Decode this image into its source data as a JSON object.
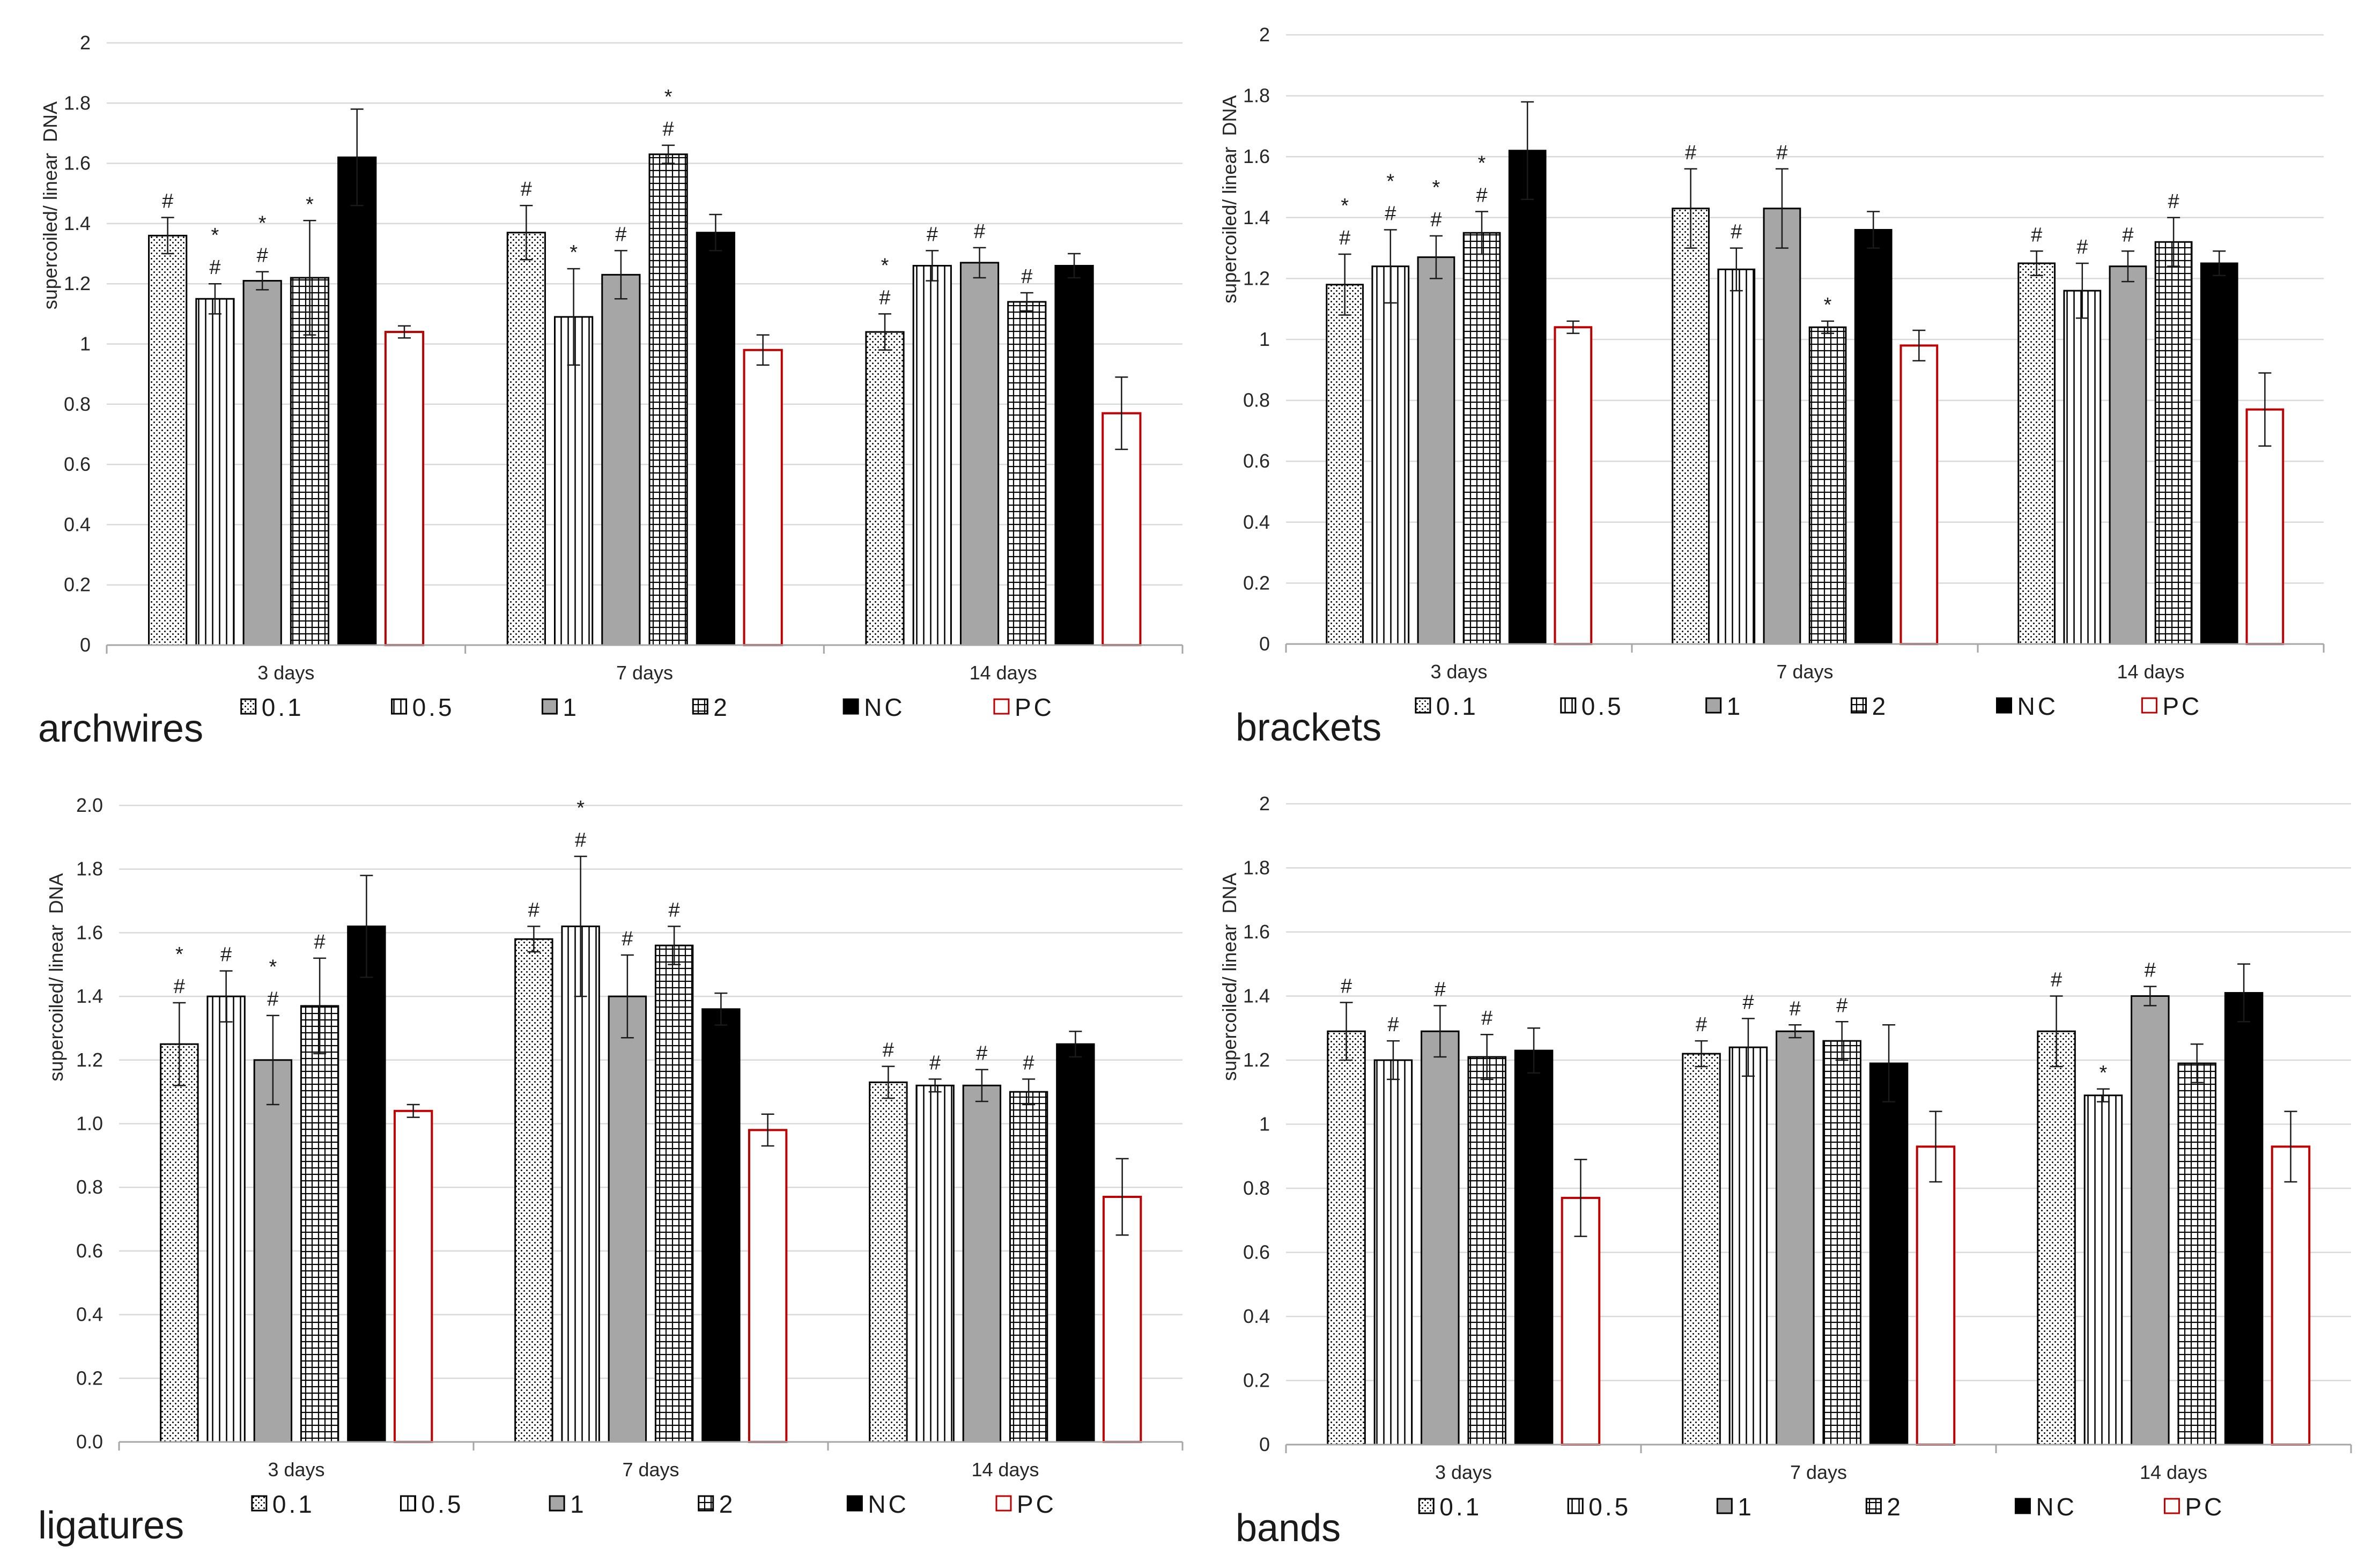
{
  "chart_data": [
    {
      "type": "bar",
      "title": "archwires",
      "xlabel": "",
      "ylabel": "supercoiled/ linear  DNA",
      "ylim": [
        0,
        2
      ],
      "ytick_labels": [
        "0",
        "0.2",
        "0.4",
        "0.6",
        "0.8",
        "1",
        "1.2",
        "1.4",
        "1.6",
        "1.8",
        "2"
      ],
      "categories": [
        "3 days",
        "7 days",
        "14 days"
      ],
      "series": [
        {
          "name": "0.1",
          "fill": "#ffffff",
          "edge": "#000000",
          "values": [
            1.36,
            1.37,
            1.04
          ],
          "errors": [
            0.06,
            0.09,
            0.06
          ],
          "annotations": [
            [
              "#"
            ],
            [
              "#"
            ],
            [
              "*",
              "#"
            ]
          ]
        },
        {
          "name": "0.5",
          "fill": "#ffffff",
          "edge": "#000000",
          "values": [
            1.15,
            1.09,
            1.26
          ],
          "errors": [
            0.05,
            0.16,
            0.05
          ],
          "annotations": [
            [
              "*",
              "#"
            ],
            [
              "*"
            ],
            [
              "#"
            ]
          ]
        },
        {
          "name": "1",
          "fill": "#a6a6a6",
          "edge": "#000000",
          "values": [
            1.21,
            1.23,
            1.27
          ],
          "errors": [
            0.03,
            0.08,
            0.05
          ],
          "annotations": [
            [
              "*",
              "#"
            ],
            [
              "#"
            ],
            [
              "#"
            ]
          ]
        },
        {
          "name": "2",
          "fill": "#ffffff",
          "edge": "#000000",
          "values": [
            1.22,
            1.63,
            1.14
          ],
          "errors": [
            0.19,
            0.03,
            0.03
          ],
          "annotations": [
            [
              "*"
            ],
            [
              "*",
              "#"
            ],
            [
              "#"
            ]
          ]
        },
        {
          "name": "NC",
          "fill": "#000000",
          "edge": "#000000",
          "values": [
            1.62,
            1.37,
            1.26
          ],
          "errors": [
            0.16,
            0.06,
            0.04
          ],
          "annotations": [
            [],
            [],
            []
          ]
        },
        {
          "name": "PC",
          "fill": "#ffffff",
          "edge": "#c00000",
          "values": [
            1.04,
            0.98,
            0.77
          ],
          "errors": [
            0.02,
            0.05,
            0.12
          ],
          "annotations": [
            [],
            [],
            []
          ]
        }
      ]
    },
    {
      "type": "bar",
      "title": "brackets",
      "xlabel": "",
      "ylabel": "supercoiled/ linear  DNA",
      "ylim": [
        0,
        2
      ],
      "ytick_labels": [
        "0",
        "0.2",
        "0.4",
        "0.6",
        "0.8",
        "1",
        "1.2",
        "1.4",
        "1.6",
        "1.8",
        "2"
      ],
      "categories": [
        "3 days",
        "7 days",
        "14 days"
      ],
      "series": [
        {
          "name": "0.1",
          "fill": "#ffffff",
          "edge": "#000000",
          "values": [
            1.18,
            1.43,
            1.25
          ],
          "errors": [
            0.1,
            0.13,
            0.04
          ],
          "annotations": [
            [
              "*",
              "#"
            ],
            [
              "#"
            ],
            [
              "#"
            ]
          ]
        },
        {
          "name": "0.5",
          "fill": "#ffffff",
          "edge": "#000000",
          "values": [
            1.24,
            1.23,
            1.16
          ],
          "errors": [
            0.12,
            0.07,
            0.09
          ],
          "annotations": [
            [
              "*",
              "#"
            ],
            [
              "#"
            ],
            [
              "#"
            ]
          ]
        },
        {
          "name": "1",
          "fill": "#a6a6a6",
          "edge": "#000000",
          "values": [
            1.27,
            1.43,
            1.24
          ],
          "errors": [
            0.07,
            0.13,
            0.05
          ],
          "annotations": [
            [
              "*",
              "#"
            ],
            [
              "#"
            ],
            [
              "#"
            ]
          ]
        },
        {
          "name": "2",
          "fill": "#ffffff",
          "edge": "#000000",
          "values": [
            1.35,
            1.04,
            1.32
          ],
          "errors": [
            0.07,
            0.02,
            0.08
          ],
          "annotations": [
            [
              "*",
              "#"
            ],
            [
              "*"
            ],
            [
              "#"
            ]
          ]
        },
        {
          "name": "NC",
          "fill": "#000000",
          "edge": "#000000",
          "values": [
            1.62,
            1.36,
            1.25
          ],
          "errors": [
            0.16,
            0.06,
            0.04
          ],
          "annotations": [
            [],
            [],
            []
          ]
        },
        {
          "name": "PC",
          "fill": "#ffffff",
          "edge": "#c00000",
          "values": [
            1.04,
            0.98,
            0.77
          ],
          "errors": [
            0.02,
            0.05,
            0.12
          ],
          "annotations": [
            [],
            [],
            []
          ]
        }
      ]
    },
    {
      "type": "bar",
      "title": "ligatures",
      "xlabel": "",
      "ylabel": "supercoiled/ linear  DNA",
      "ylim": [
        0,
        2
      ],
      "ytick_labels": [
        "0.0",
        "0.2",
        "0.4",
        "0.6",
        "0.8",
        "1.0",
        "1.2",
        "1.4",
        "1.6",
        "1.8",
        "2.0"
      ],
      "categories": [
        "3 days",
        "7 days",
        "14 days"
      ],
      "series": [
        {
          "name": "0.1",
          "fill": "#ffffff",
          "edge": "#000000",
          "values": [
            1.25,
            1.58,
            1.13
          ],
          "errors": [
            0.13,
            0.04,
            0.05
          ],
          "annotations": [
            [
              "*",
              "#"
            ],
            [
              "#"
            ],
            [
              "#"
            ]
          ]
        },
        {
          "name": "0.5",
          "fill": "#ffffff",
          "edge": "#000000",
          "values": [
            1.4,
            1.62,
            1.12
          ],
          "errors": [
            0.08,
            0.22,
            0.02
          ],
          "annotations": [
            [
              "#"
            ],
            [
              "*",
              "#"
            ],
            [
              "#"
            ]
          ]
        },
        {
          "name": "1",
          "fill": "#a6a6a6",
          "edge": "#000000",
          "values": [
            1.2,
            1.4,
            1.12
          ],
          "errors": [
            0.14,
            0.13,
            0.05
          ],
          "annotations": [
            [
              "*",
              "#"
            ],
            [
              "#"
            ],
            [
              "#"
            ]
          ]
        },
        {
          "name": "2",
          "fill": "#ffffff",
          "edge": "#000000",
          "values": [
            1.37,
            1.56,
            1.1
          ],
          "errors": [
            0.15,
            0.06,
            0.04
          ],
          "annotations": [
            [
              "#"
            ],
            [
              "#"
            ],
            [
              "#"
            ]
          ]
        },
        {
          "name": "NC",
          "fill": "#000000",
          "edge": "#000000",
          "values": [
            1.62,
            1.36,
            1.25
          ],
          "errors": [
            0.16,
            0.05,
            0.04
          ],
          "annotations": [
            [],
            [],
            []
          ]
        },
        {
          "name": "PC",
          "fill": "#ffffff",
          "edge": "#c00000",
          "values": [
            1.04,
            0.98,
            0.77
          ],
          "errors": [
            0.02,
            0.05,
            0.12
          ],
          "annotations": [
            [],
            [],
            []
          ]
        }
      ]
    },
    {
      "type": "bar",
      "title": "bands",
      "xlabel": "",
      "ylabel": "supercoiled/ linear  DNA",
      "ylim": [
        0,
        2
      ],
      "ytick_labels": [
        "0",
        "0.2",
        "0.4",
        "0.6",
        "0.8",
        "1",
        "1.2",
        "1.4",
        "1.6",
        "1.8",
        "2"
      ],
      "categories": [
        "3 days",
        "7 days",
        "14 days"
      ],
      "series": [
        {
          "name": "0.1",
          "fill": "#ffffff",
          "edge": "#000000",
          "values": [
            1.29,
            1.22,
            1.29
          ],
          "errors": [
            0.09,
            0.04,
            0.11
          ],
          "annotations": [
            [
              "#"
            ],
            [
              "#"
            ],
            [
              "#"
            ]
          ]
        },
        {
          "name": "0.5",
          "fill": "#ffffff",
          "edge": "#000000",
          "values": [
            1.2,
            1.24,
            1.09
          ],
          "errors": [
            0.06,
            0.09,
            0.02
          ],
          "annotations": [
            [
              "#"
            ],
            [
              "#"
            ],
            [
              "*"
            ]
          ]
        },
        {
          "name": "1",
          "fill": "#a6a6a6",
          "edge": "#000000",
          "values": [
            1.29,
            1.29,
            1.4
          ],
          "errors": [
            0.08,
            0.02,
            0.03
          ],
          "annotations": [
            [
              "#"
            ],
            [
              "#"
            ],
            [
              "#"
            ]
          ]
        },
        {
          "name": "2",
          "fill": "#ffffff",
          "edge": "#000000",
          "values": [
            1.21,
            1.26,
            1.19
          ],
          "errors": [
            0.07,
            0.06,
            0.06
          ],
          "annotations": [
            [
              "#"
            ],
            [
              "#"
            ],
            []
          ]
        },
        {
          "name": "NC",
          "fill": "#000000",
          "edge": "#000000",
          "values": [
            1.23,
            1.19,
            1.41
          ],
          "errors": [
            0.07,
            0.12,
            0.09
          ],
          "annotations": [
            [],
            [],
            []
          ]
        },
        {
          "name": "PC",
          "fill": "#ffffff",
          "edge": "#c00000",
          "values": [
            0.77,
            0.93,
            0.93
          ],
          "errors": [
            0.12,
            0.11,
            0.11
          ],
          "annotations": [
            [],
            [],
            []
          ]
        }
      ]
    }
  ]
}
